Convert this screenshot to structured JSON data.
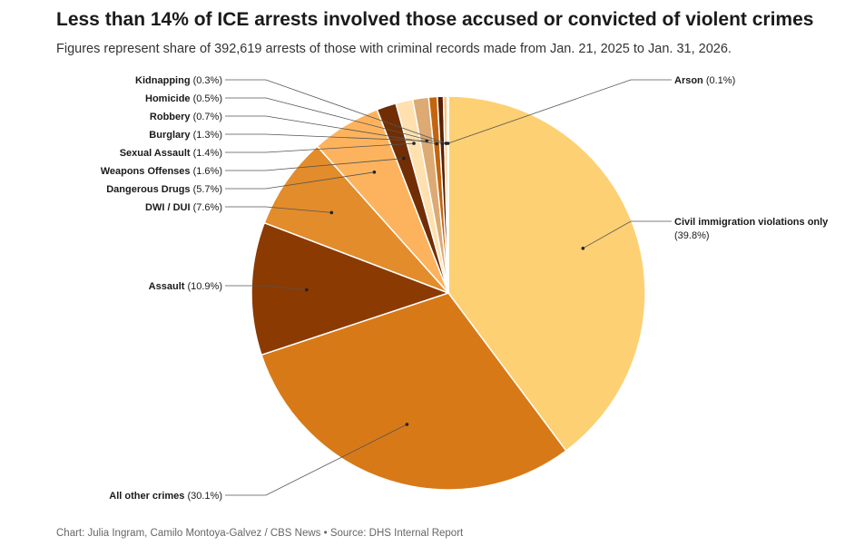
{
  "header": {
    "title": "Less than 14% of ICE arrests involved those accused or convicted of violent crimes",
    "subtitle": "Figures represent share of 392,619 arrests of those with criminal records made from Jan. 21, 2025 to Jan. 31, 2026."
  },
  "footer": {
    "credit": "Chart: Julia Ingram, Camilo Montoya-Galvez / CBS News • Source: DHS Internal Report"
  },
  "chart_data": {
    "type": "pie",
    "unit": "%",
    "slices": [
      {
        "name": "Civil immigration violations only",
        "value": 39.8,
        "label_pct": "(39.8%)",
        "color": "#fdd073"
      },
      {
        "name": "All other crimes",
        "value": 30.1,
        "label_pct": "(30.1%)",
        "color": "#d87917"
      },
      {
        "name": "Assault",
        "value": 10.9,
        "label_pct": "(10.9%)",
        "color": "#8b3a01"
      },
      {
        "name": "DWI / DUI",
        "value": 7.6,
        "label_pct": "(7.6%)",
        "color": "#e28c2c"
      },
      {
        "name": "Dangerous Drugs",
        "value": 5.7,
        "label_pct": "(5.7%)",
        "color": "#fdb35d"
      },
      {
        "name": "Weapons Offenses",
        "value": 1.6,
        "label_pct": "(1.6%)",
        "color": "#712e04"
      },
      {
        "name": "Sexual Assault",
        "value": 1.4,
        "label_pct": "(1.4%)",
        "color": "#ffe0ae"
      },
      {
        "name": "Burglary",
        "value": 1.3,
        "label_pct": "(1.3%)",
        "color": "#dcaa72"
      },
      {
        "name": "Robbery",
        "value": 0.7,
        "label_pct": "(0.7%)",
        "color": "#c2650e"
      },
      {
        "name": "Homicide",
        "value": 0.5,
        "label_pct": "(0.5%)",
        "color": "#5a2202"
      },
      {
        "name": "Kidnapping",
        "value": 0.3,
        "label_pct": "(0.3%)",
        "color": "#fbc078"
      },
      {
        "name": "Arson",
        "value": 0.1,
        "label_pct": "(0.1%)",
        "color": "#a14a0a"
      }
    ]
  }
}
